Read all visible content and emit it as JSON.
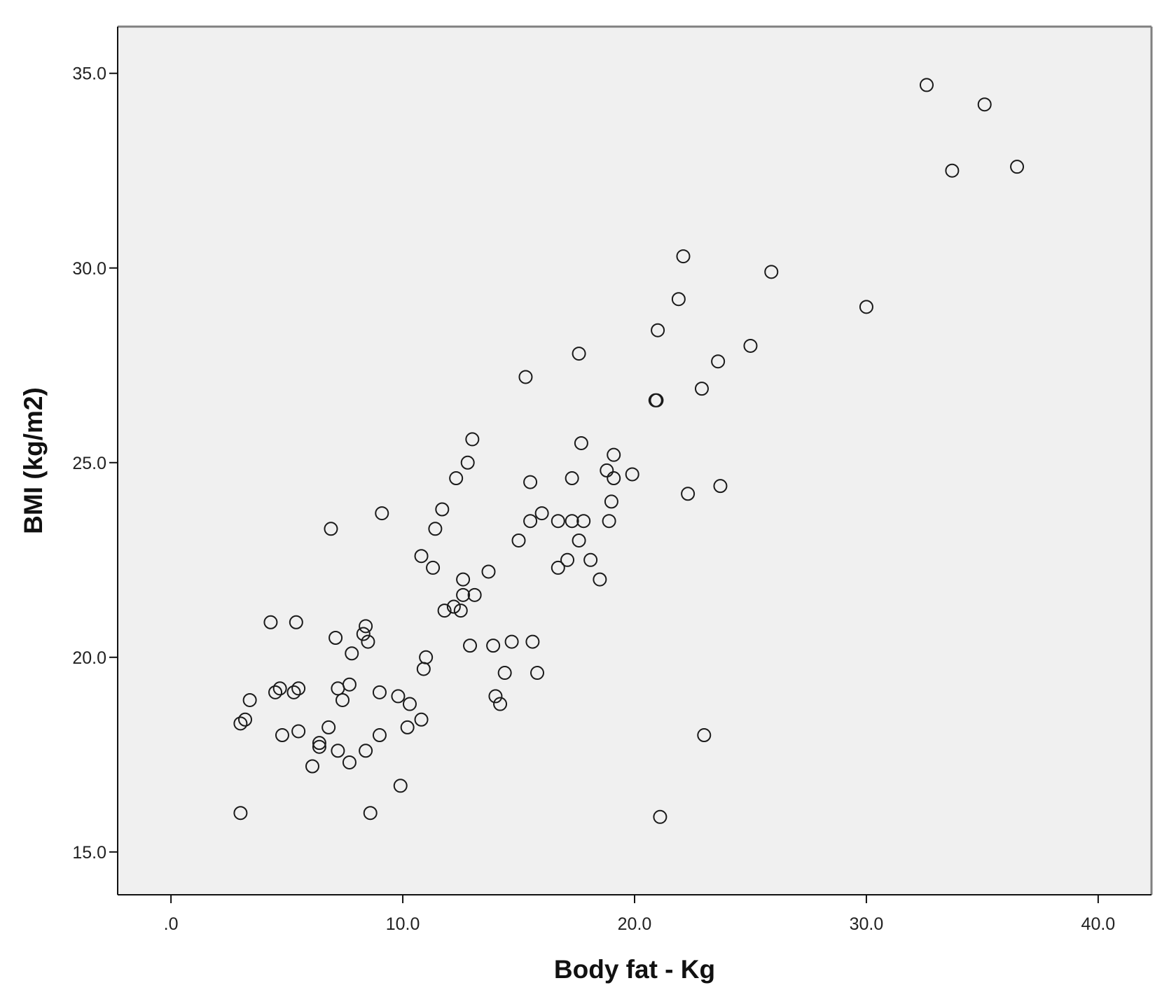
{
  "colors": {
    "plot_background": "#f0f0f0",
    "frame": "#555555",
    "marker_stroke": "#1a1a1a",
    "page_background": "#ffffff"
  },
  "chart_data": {
    "type": "scatter",
    "title": "",
    "xlabel": "Body fat - Kg",
    "ylabel": "BMI (kg/m2)",
    "xlim": [
      -2.3,
      42.3
    ],
    "ylim": [
      13.9,
      36.2
    ],
    "x_ticks": [
      0,
      10,
      20,
      30,
      40
    ],
    "x_tick_labels": [
      ".0",
      "10.0",
      "20.0",
      "30.0",
      "40.0"
    ],
    "y_ticks": [
      15,
      20,
      25,
      30,
      35
    ],
    "y_tick_labels": [
      "15.0",
      "20.0",
      "25.0",
      "30.0",
      "35.0"
    ],
    "grid": false,
    "legend": "none",
    "marker": "open-circle",
    "points": [
      [
        32.6,
        34.7
      ],
      [
        35.1,
        34.2
      ],
      [
        33.7,
        32.5
      ],
      [
        36.5,
        32.6
      ],
      [
        22.1,
        30.3
      ],
      [
        25.9,
        29.9
      ],
      [
        21.9,
        29.2
      ],
      [
        30.0,
        29.0
      ],
      [
        21.0,
        28.4
      ],
      [
        17.6,
        27.8
      ],
      [
        25.0,
        28.0
      ],
      [
        23.6,
        27.6
      ],
      [
        15.3,
        27.2
      ],
      [
        22.9,
        26.9
      ],
      [
        20.9,
        26.6
      ],
      [
        20.95,
        26.6
      ],
      [
        13.0,
        25.6
      ],
      [
        17.7,
        25.5
      ],
      [
        12.8,
        25.0
      ],
      [
        19.1,
        25.2
      ],
      [
        12.3,
        24.6
      ],
      [
        15.5,
        24.5
      ],
      [
        17.3,
        24.6
      ],
      [
        18.8,
        24.8
      ],
      [
        19.1,
        24.6
      ],
      [
        19.9,
        24.7
      ],
      [
        22.3,
        24.2
      ],
      [
        23.7,
        24.4
      ],
      [
        19.0,
        24.0
      ],
      [
        16.0,
        23.7
      ],
      [
        15.5,
        23.5
      ],
      [
        16.7,
        23.5
      ],
      [
        17.3,
        23.5
      ],
      [
        17.8,
        23.5
      ],
      [
        18.9,
        23.5
      ],
      [
        9.1,
        23.7
      ],
      [
        11.7,
        23.8
      ],
      [
        11.4,
        23.3
      ],
      [
        6.9,
        23.3
      ],
      [
        15.0,
        23.0
      ],
      [
        17.6,
        23.0
      ],
      [
        10.8,
        22.6
      ],
      [
        11.3,
        22.3
      ],
      [
        17.1,
        22.5
      ],
      [
        18.1,
        22.5
      ],
      [
        16.7,
        22.3
      ],
      [
        13.7,
        22.2
      ],
      [
        12.6,
        22.0
      ],
      [
        18.5,
        22.0
      ],
      [
        12.6,
        21.6
      ],
      [
        13.1,
        21.6
      ],
      [
        11.8,
        21.2
      ],
      [
        12.2,
        21.3
      ],
      [
        12.5,
        21.2
      ],
      [
        4.3,
        20.9
      ],
      [
        5.4,
        20.9
      ],
      [
        8.4,
        20.8
      ],
      [
        8.3,
        20.6
      ],
      [
        7.1,
        20.5
      ],
      [
        8.5,
        20.4
      ],
      [
        14.7,
        20.4
      ],
      [
        15.6,
        20.4
      ],
      [
        12.9,
        20.3
      ],
      [
        13.9,
        20.3
      ],
      [
        7.8,
        20.1
      ],
      [
        11.0,
        20.0
      ],
      [
        10.9,
        19.7
      ],
      [
        14.4,
        19.6
      ],
      [
        15.8,
        19.6
      ],
      [
        4.5,
        19.1
      ],
      [
        4.7,
        19.2
      ],
      [
        5.3,
        19.1
      ],
      [
        5.5,
        19.2
      ],
      [
        7.2,
        19.2
      ],
      [
        7.7,
        19.3
      ],
      [
        9.0,
        19.1
      ],
      [
        9.8,
        19.0
      ],
      [
        3.4,
        18.9
      ],
      [
        7.4,
        18.9
      ],
      [
        10.3,
        18.8
      ],
      [
        14.0,
        19.0
      ],
      [
        14.2,
        18.8
      ],
      [
        3.2,
        18.4
      ],
      [
        3.0,
        18.3
      ],
      [
        10.8,
        18.4
      ],
      [
        6.8,
        18.2
      ],
      [
        10.2,
        18.2
      ],
      [
        4.8,
        18.0
      ],
      [
        5.5,
        18.1
      ],
      [
        9.0,
        18.0
      ],
      [
        23.0,
        18.0
      ],
      [
        6.4,
        17.8
      ],
      [
        6.4,
        17.7
      ],
      [
        7.2,
        17.6
      ],
      [
        8.4,
        17.6
      ],
      [
        7.7,
        17.3
      ],
      [
        6.1,
        17.2
      ],
      [
        9.9,
        16.7
      ],
      [
        3.0,
        16.0
      ],
      [
        8.6,
        16.0
      ],
      [
        21.1,
        15.9
      ]
    ]
  }
}
